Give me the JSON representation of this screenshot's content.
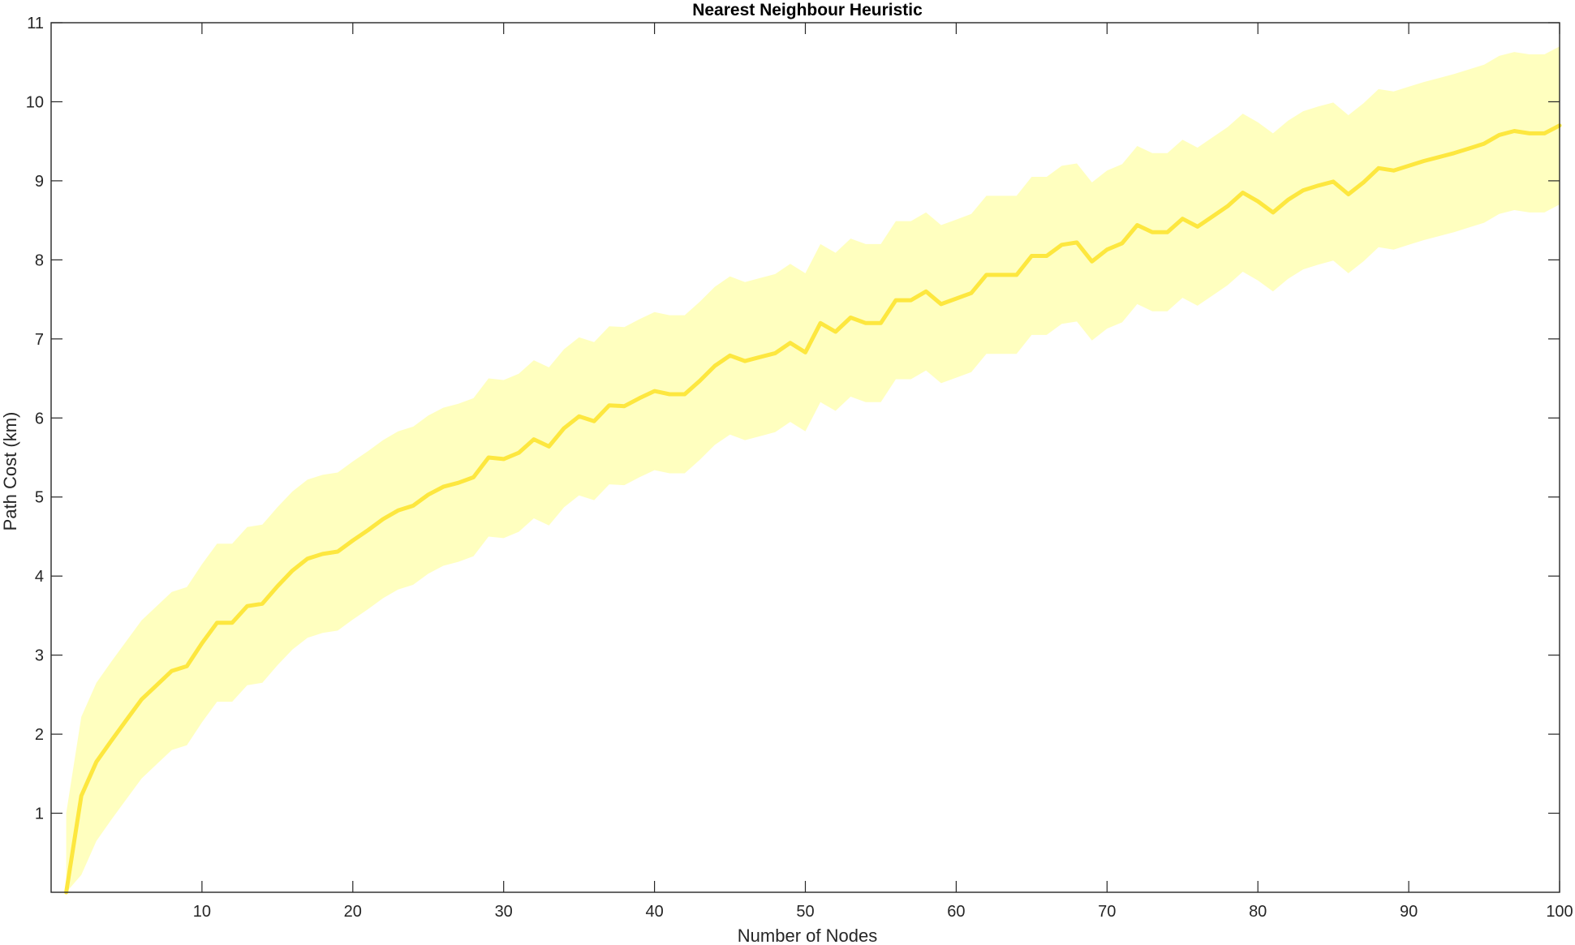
{
  "chart_data": {
    "type": "line",
    "title": "Nearest Neighbour Heuristic",
    "xlabel": "Number of Nodes",
    "ylabel": "Path Cost (km)",
    "xlim": [
      0,
      100
    ],
    "ylim": [
      0,
      11
    ],
    "xticks": [
      10,
      20,
      30,
      40,
      50,
      60,
      70,
      80,
      90,
      100
    ],
    "yticks": [
      1,
      2,
      3,
      4,
      5,
      6,
      7,
      8,
      9,
      10,
      11
    ],
    "grid": false,
    "legend": "none",
    "colors": {
      "line": "#fde73f",
      "band": "#ffffbf",
      "axes": "#262626"
    },
    "x": [
      1,
      2,
      3,
      4,
      5,
      6,
      7,
      8,
      9,
      10,
      11,
      12,
      13,
      14,
      15,
      16,
      17,
      18,
      19,
      20,
      21,
      22,
      23,
      24,
      25,
      26,
      27,
      28,
      29,
      30,
      31,
      32,
      33,
      34,
      35,
      36,
      37,
      38,
      39,
      40,
      41,
      42,
      43,
      44,
      45,
      46,
      47,
      48,
      49,
      50,
      51,
      52,
      53,
      54,
      55,
      56,
      57,
      58,
      59,
      60,
      61,
      62,
      63,
      64,
      65,
      66,
      67,
      68,
      69,
      70,
      71,
      72,
      73,
      74,
      75,
      76,
      77,
      78,
      79,
      80,
      81,
      82,
      83,
      84,
      85,
      86,
      87,
      88,
      89,
      90,
      91,
      92,
      93,
      94,
      95,
      96,
      97,
      98,
      99,
      100
    ],
    "series": [
      {
        "type": "line",
        "values": [
          0,
          1.22,
          1.65,
          1.92,
          2.18,
          2.44,
          2.62,
          2.8,
          2.86,
          3.15,
          3.41,
          3.41,
          3.62,
          3.65,
          3.87,
          4.07,
          4.22,
          4.28,
          4.31,
          4.45,
          4.58,
          4.72,
          4.83,
          4.89,
          5.03,
          5.13,
          5.18,
          5.25,
          5.5,
          5.48,
          5.56,
          5.73,
          5.64,
          5.87,
          6.02,
          5.96,
          6.16,
          6.15,
          6.25,
          6.34,
          6.3,
          6.3,
          6.47,
          6.66,
          6.79,
          6.72,
          6.77,
          6.82,
          6.95,
          6.83,
          7.2,
          7.09,
          7.27,
          7.2,
          7.2,
          7.49,
          7.49,
          7.6,
          7.44,
          7.51,
          7.58,
          7.81,
          7.81,
          7.81,
          8.05,
          8.05,
          8.19,
          8.22,
          7.98,
          8.13,
          8.21,
          8.44,
          8.35,
          8.35,
          8.52,
          8.42,
          8.55,
          8.68,
          8.85,
          8.74,
          8.6,
          8.76,
          8.88,
          8.94,
          8.99,
          8.83,
          8.98,
          9.16,
          9.13,
          9.19,
          9.25,
          9.3,
          9.35,
          9.41,
          9.47,
          9.58,
          9.63,
          9.6,
          9.6,
          9.7
        ]
      },
      {
        "type": "band",
        "upper": [
          1,
          2.22,
          2.65,
          2.92,
          3.18,
          3.44,
          3.62,
          3.8,
          3.86,
          4.15,
          4.41,
          4.41,
          4.62,
          4.65,
          4.87,
          5.07,
          5.22,
          5.28,
          5.31,
          5.45,
          5.58,
          5.72,
          5.83,
          5.89,
          6.03,
          6.13,
          6.18,
          6.25,
          6.5,
          6.48,
          6.56,
          6.73,
          6.64,
          6.87,
          7.02,
          6.96,
          7.16,
          7.15,
          7.25,
          7.34,
          7.3,
          7.3,
          7.47,
          7.66,
          7.79,
          7.72,
          7.77,
          7.82,
          7.95,
          7.83,
          8.2,
          8.09,
          8.27,
          8.2,
          8.2,
          8.49,
          8.49,
          8.6,
          8.44,
          8.51,
          8.58,
          8.81,
          8.81,
          8.81,
          9.05,
          9.05,
          9.19,
          9.22,
          8.98,
          9.13,
          9.21,
          9.44,
          9.35,
          9.35,
          9.52,
          9.42,
          9.55,
          9.68,
          9.85,
          9.74,
          9.6,
          9.76,
          9.88,
          9.94,
          9.99,
          9.83,
          9.98,
          10.16,
          10.13,
          10.19,
          10.25,
          10.3,
          10.35,
          10.41,
          10.47,
          10.58,
          10.63,
          10.6,
          10.6,
          10.7
        ],
        "lower": [
          0,
          0.22,
          0.65,
          0.92,
          1.18,
          1.44,
          1.62,
          1.8,
          1.86,
          2.15,
          2.41,
          2.41,
          2.62,
          2.65,
          2.87,
          3.07,
          3.22,
          3.28,
          3.31,
          3.45,
          3.58,
          3.72,
          3.83,
          3.89,
          4.03,
          4.13,
          4.18,
          4.25,
          4.5,
          4.48,
          4.56,
          4.73,
          4.64,
          4.87,
          5.02,
          4.96,
          5.16,
          5.15,
          5.25,
          5.34,
          5.3,
          5.3,
          5.47,
          5.66,
          5.79,
          5.72,
          5.77,
          5.82,
          5.95,
          5.83,
          6.2,
          6.09,
          6.27,
          6.2,
          6.2,
          6.49,
          6.49,
          6.6,
          6.44,
          6.51,
          6.58,
          6.81,
          6.81,
          6.81,
          7.05,
          7.05,
          7.19,
          7.22,
          6.98,
          7.13,
          7.21,
          7.44,
          7.35,
          7.35,
          7.52,
          7.42,
          7.55,
          7.68,
          7.85,
          7.74,
          7.6,
          7.76,
          7.88,
          7.94,
          7.99,
          7.83,
          7.98,
          8.16,
          8.13,
          8.19,
          8.25,
          8.3,
          8.35,
          8.41,
          8.47,
          8.58,
          8.63,
          8.6,
          8.6,
          8.7
        ]
      }
    ]
  }
}
